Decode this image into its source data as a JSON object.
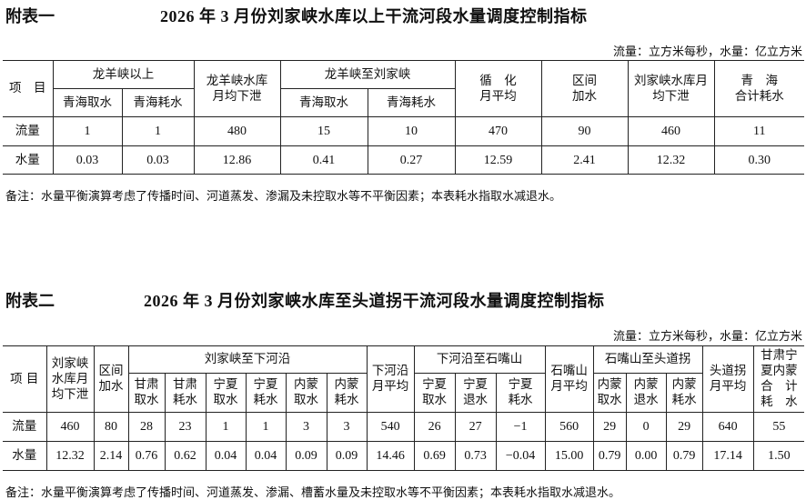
{
  "table1": {
    "label": "附表一",
    "title": "2026 年 3 月份刘家峡水库以上干流河段水量调度控制指标",
    "units": "流量：立方米每秒，水量：亿立方米",
    "item_header": "项　目",
    "groups": {
      "longyang_above": "龙羊峡以上",
      "longyang_res": "龙羊峡水库\n月均下泄",
      "longyang_liujia": "龙羊峡至刘家峡",
      "xunhua": "循　化\n月平均",
      "interval": "区间\n加水",
      "liujia_res": "刘家峡水库月\n均下泄",
      "qinghai_total": "青　海\n合计耗水"
    },
    "subheaders": [
      "青海取水",
      "青海耗水",
      "青海取水",
      "青海耗水"
    ],
    "rows": [
      {
        "label": "流量",
        "values": [
          "1",
          "1",
          "480",
          "15",
          "10",
          "470",
          "90",
          "460",
          "11"
        ]
      },
      {
        "label": "水量",
        "values": [
          "0.03",
          "0.03",
          "12.86",
          "0.41",
          "0.27",
          "12.59",
          "2.41",
          "12.32",
          "0.30"
        ]
      }
    ],
    "note": "备注：水量平衡演算考虑了传播时间、河道蒸发、渗漏及未控取水等不平衡因素；本表耗水指取水减退水。"
  },
  "table2": {
    "label": "附表二",
    "title": "2026 年 3 月份刘家峡水库至头道拐干流河段水量调度控制指标",
    "units": "流量：立方米每秒，水量：亿立方米",
    "item_header": "项 目",
    "groups": {
      "liujia_res": "刘家峡\n水库月\n均下泄",
      "interval": "区间\n加水",
      "liujia_xiaheyan": "刘家峡至下河沿",
      "xiaheyan": "下河沿\n月平均",
      "xiaheyan_shizuishan": "下河沿至石嘴山",
      "shizuishan": "石嘴山\n月平均",
      "shizuishan_toudaoguai": "石嘴山至头道拐",
      "toudaoguai": "头道拐\n月平均",
      "total": "甘肃宁\n夏内蒙\n合　计\n耗　水"
    },
    "subheaders": [
      "甘肃\n取水",
      "甘肃\n耗水",
      "宁夏\n取水",
      "宁夏\n耗水",
      "内蒙\n取水",
      "内蒙\n耗水",
      "宁夏\n取水",
      "宁夏\n退水",
      "宁夏\n耗水",
      "内蒙\n取水",
      "内蒙\n退水",
      "内蒙\n耗水"
    ],
    "rows": [
      {
        "label": "流量",
        "values": [
          "460",
          "80",
          "28",
          "23",
          "1",
          "1",
          "3",
          "3",
          "540",
          "26",
          "27",
          "−1",
          "560",
          "29",
          "0",
          "29",
          "640",
          "55"
        ]
      },
      {
        "label": "水量",
        "values": [
          "12.32",
          "2.14",
          "0.76",
          "0.62",
          "0.04",
          "0.04",
          "0.09",
          "0.09",
          "14.46",
          "0.69",
          "0.73",
          "−0.04",
          "15.00",
          "0.79",
          "0.00",
          "0.79",
          "17.14",
          "1.50"
        ]
      }
    ],
    "note": "备注：水量平衡演算考虑了传播时间、河道蒸发、渗漏、槽蓄水量及未控取水等不平衡因素；本表耗水指取水减退水。"
  }
}
